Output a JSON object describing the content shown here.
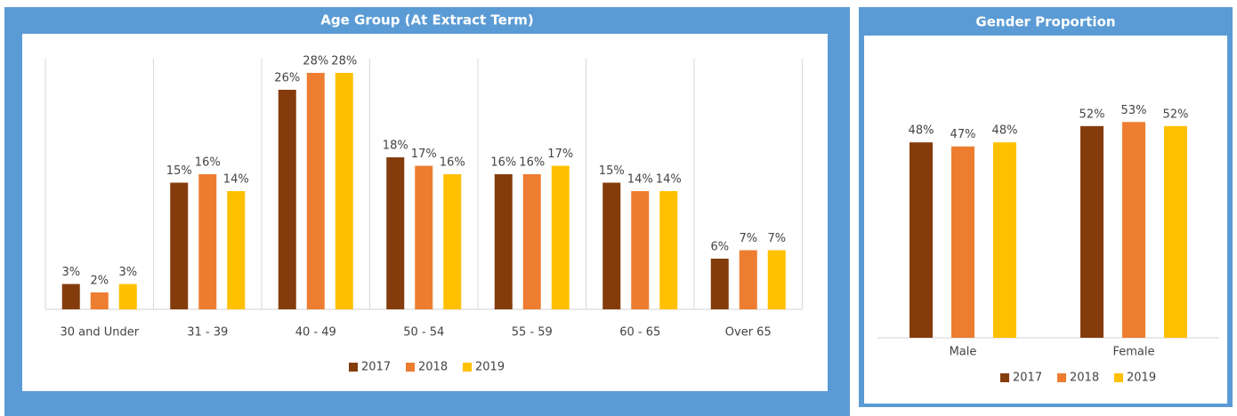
{
  "chart_data": [
    {
      "type": "bar",
      "title": "Age Group (At Extract Term)",
      "categories": [
        "30 and Under",
        "31 - 39",
        "40 - 49",
        "50 - 54",
        "55 - 59",
        "60 - 65",
        "Over 65"
      ],
      "series": [
        {
          "name": "2017",
          "color": "#843c0c",
          "values": [
            3,
            15,
            26,
            18,
            16,
            15,
            6
          ],
          "value_labels": [
            "3%",
            "15%",
            "26%",
            "18%",
            "16%",
            "15%",
            "6%"
          ]
        },
        {
          "name": "2018",
          "color": "#ed7d31",
          "values": [
            2,
            16,
            28,
            17,
            16,
            14,
            7
          ],
          "value_labels": [
            "2%",
            "16%",
            "28%",
            "17%",
            "16%",
            "14%",
            "7%"
          ]
        },
        {
          "name": "2019",
          "color": "#ffc000",
          "values": [
            3,
            14,
            28,
            16,
            17,
            14,
            7
          ],
          "value_labels": [
            "3%",
            "14%",
            "28%",
            "16%",
            "17%",
            "14%",
            "7%"
          ]
        }
      ],
      "legend": "bottom"
    },
    {
      "type": "bar",
      "title": "Gender Proportion",
      "categories": [
        "Male",
        "Female"
      ],
      "series": [
        {
          "name": "2017",
          "color": "#843c0c",
          "values": [
            48,
            52
          ],
          "value_labels": [
            "48%",
            "52%"
          ]
        },
        {
          "name": "2018",
          "color": "#ed7d31",
          "values": [
            47,
            53
          ],
          "value_labels": [
            "47%",
            "53%"
          ]
        },
        {
          "name": "2019",
          "color": "#ffc000",
          "values": [
            48,
            52
          ],
          "value_labels": [
            "48%",
            "52%"
          ]
        }
      ],
      "legend": "bottom"
    }
  ]
}
